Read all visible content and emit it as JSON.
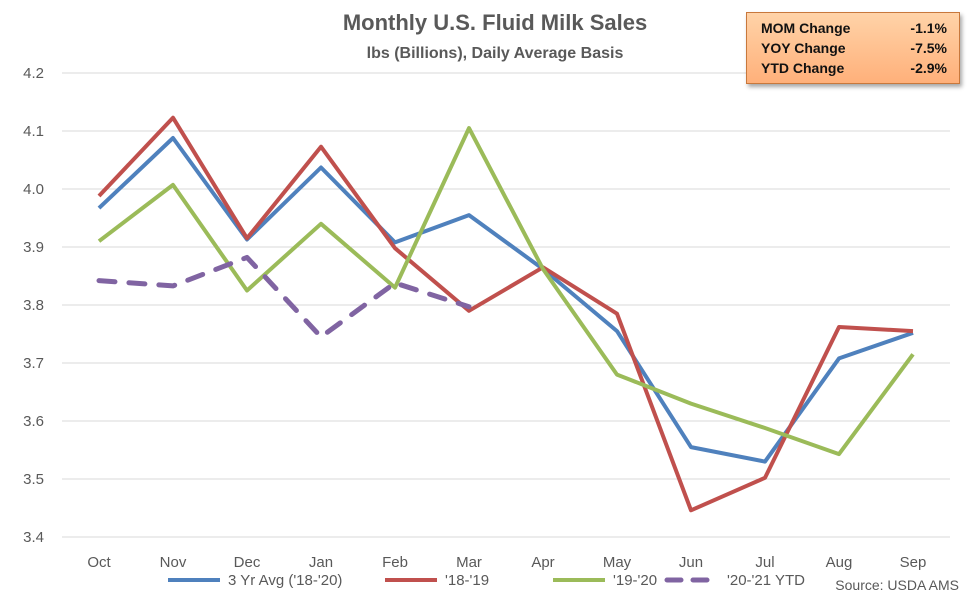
{
  "chart_data": {
    "type": "line",
    "title": "Monthly U.S. Fluid Milk Sales",
    "subtitle": "lbs (Billions), Daily Average Basis",
    "categories": [
      "Oct",
      "Nov",
      "Dec",
      "Jan",
      "Feb",
      "Mar",
      "Apr",
      "May",
      "Jun",
      "Jul",
      "Aug",
      "Sep"
    ],
    "ylim": [
      3.4,
      4.2
    ],
    "yticks": [
      "3.4",
      "3.5",
      "3.6",
      "3.7",
      "3.8",
      "3.9",
      "4.0",
      "4.1",
      "4.2"
    ],
    "grid": "horizontal",
    "legend_position": "bottom",
    "series": [
      {
        "name": "3 Yr Avg ('18-'20)",
        "color": "#4f81bd",
        "dash": "solid",
        "values": [
          3.967,
          4.088,
          3.913,
          4.037,
          3.908,
          3.955,
          3.862,
          3.755,
          3.555,
          3.53,
          3.708,
          3.752
        ]
      },
      {
        "name": "'18-'19",
        "color": "#c0504d",
        "dash": "solid",
        "values": [
          3.988,
          4.123,
          3.915,
          4.073,
          3.898,
          3.79,
          3.865,
          3.785,
          3.446,
          3.502,
          3.762,
          3.755
        ]
      },
      {
        "name": "'19-'20",
        "color": "#9bbb59",
        "dash": "solid",
        "values": [
          3.91,
          4.007,
          3.825,
          3.94,
          3.83,
          4.105,
          3.862,
          3.68,
          3.63,
          3.588,
          3.543,
          3.715
        ]
      },
      {
        "name": "'20-'21 YTD",
        "color": "#8064a2",
        "dash": "dashed",
        "values": [
          3.842,
          3.833,
          3.882,
          3.745,
          3.838,
          3.797,
          null,
          null,
          null,
          null,
          null,
          null
        ]
      }
    ],
    "source": "Source: USDA AMS"
  },
  "stats": [
    {
      "label": "MOM Change",
      "value": "-1.1%"
    },
    {
      "label": "YOY Change",
      "value": "-7.5%"
    },
    {
      "label": "YTD Change",
      "value": "-2.9%"
    }
  ]
}
